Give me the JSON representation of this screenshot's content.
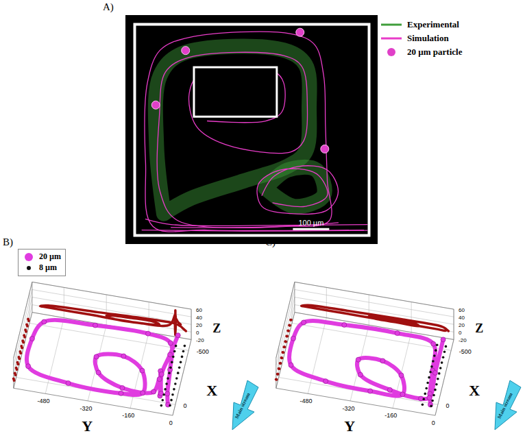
{
  "chart_data": [
    {
      "type": "trajectory",
      "title": "A)",
      "legend": "right",
      "tick_labels": false,
      "xlim": [
        0,
        645
      ],
      "ylim": [
        0,
        581
      ],
      "obstacle": {
        "x": [
          164,
          392
        ],
        "y": [
          326,
          462
        ]
      },
      "scale_bar": {
        "length": 100,
        "label": "100 µm"
      },
      "series": [
        {
          "name": "Experimental",
          "color": "#3f9e3a",
          "line_style": "solid",
          "paths": [
            [
              [
                80,
                60
              ],
              [
                60,
                250
              ],
              [
                70,
                440
              ],
              [
                130,
                500
              ],
              [
                410,
                510
              ],
              [
                470,
                470
              ],
              [
                480,
                350
              ],
              [
                470,
                230
              ],
              [
                420,
                190
              ],
              [
                300,
                150
              ],
              [
                150,
                100
              ],
              [
                80,
                60
              ]
            ],
            [
              [
                360,
                130
              ],
              [
                420,
                180
              ],
              [
                500,
                180
              ],
              [
                520,
                110
              ],
              [
                440,
                80
              ],
              [
                360,
                130
              ]
            ]
          ]
        },
        {
          "name": "Simulation",
          "color": "#e83cc8",
          "line_style": "solid",
          "paths": [
            [
              [
                630,
                15
              ],
              [
                200,
                15
              ],
              [
                50,
                25
              ],
              [
                30,
                200
              ],
              [
                35,
                420
              ],
              [
                70,
                510
              ],
              [
                150,
                545
              ],
              [
                430,
                555
              ],
              [
                495,
                525
              ],
              [
                520,
                440
              ],
              [
                525,
                300
              ],
              [
                530,
                150
              ],
              [
                535,
                40
              ],
              [
                400,
                25
              ],
              [
                100,
                22
              ]
            ],
            [
              [
                560,
                35
              ],
              [
                120,
                40
              ],
              [
                70,
                120
              ],
              [
                68,
                330
              ],
              [
                85,
                450
              ],
              [
                150,
                490
              ],
              [
                410,
                495
              ],
              [
                460,
                465
              ],
              [
                475,
                360
              ],
              [
                465,
                260
              ],
              [
                430,
                230
              ],
              [
                250,
                250
              ],
              [
                170,
                300
              ],
              [
                150,
                390
              ],
              [
                180,
                445
              ],
              [
                385,
                450
              ],
              [
                410,
                420
              ],
              [
                405,
                340
              ],
              [
                360,
                315
              ],
              [
                200,
                315
              ]
            ],
            [
              [
                350,
                110
              ],
              [
                380,
                160
              ],
              [
                450,
                190
              ],
              [
                530,
                180
              ],
              [
                560,
                120
              ],
              [
                530,
                70
              ],
              [
                430,
                60
              ],
              [
                350,
                80
              ],
              [
                340,
                140
              ],
              [
                400,
                180
              ],
              [
                500,
                170
              ],
              [
                530,
                110
              ],
              [
                470,
                80
              ],
              [
                380,
                90
              ]
            ],
            [
              [
                20,
                15
              ],
              [
                300,
                12
              ],
              [
                640,
                14
              ]
            ],
            [
              [
                30,
                45
              ],
              [
                100,
                30
              ],
              [
                400,
                28
              ],
              [
                640,
                30
              ]
            ]
          ]
        },
        {
          "name": "20 µm particle",
          "color": "#e040c8",
          "marker": "sphere",
          "x": [
            140,
            455,
            58,
            523
          ],
          "y": [
            509,
            559,
            359,
            238
          ]
        }
      ]
    },
    {
      "type": "scatter3d",
      "title": "B)",
      "legend": "top-left",
      "grid": true,
      "xlabel": "X",
      "ylabel": "Y",
      "zlabel": "Z",
      "xlim": [
        -600,
        100
      ],
      "ylim": [
        -600,
        0
      ],
      "zlim": [
        -20,
        60
      ],
      "xticks": [
        -500,
        0
      ],
      "yticks": [
        -480,
        -320,
        -160,
        0
      ],
      "zticks": [
        -20,
        0,
        20,
        40,
        60
      ],
      "annotations": [
        "Main stream"
      ],
      "series": [
        {
          "name": "20 µm",
          "color": "#e03ce0",
          "type": "line",
          "marker": "sphere",
          "x": [
            80,
            0,
            -200,
            -420,
            -470,
            -480,
            -450,
            -300,
            -50,
            40,
            50,
            30,
            -150,
            -250,
            -220,
            -100,
            0,
            20,
            0,
            -20,
            -40,
            -60,
            -80,
            -300,
            -500
          ],
          "y": [
            -20,
            -30,
            -40,
            -60,
            -150,
            -350,
            -540,
            -570,
            -560,
            -400,
            -200,
            -120,
            -140,
            -220,
            -320,
            -300,
            -200,
            -80,
            -60,
            -60,
            -60,
            -60,
            -60,
            -50,
            -40
          ],
          "z": [
            0,
            5,
            10,
            15,
            15,
            10,
            5,
            0,
            0,
            0,
            0,
            5,
            10,
            10,
            5,
            0,
            0,
            10,
            40,
            -10,
            50,
            -15,
            30,
            20,
            15
          ]
        },
        {
          "name": "8 µm",
          "color": "#111111",
          "type": "scatter",
          "marker": "dot",
          "x": [
            100,
            50,
            0,
            -50,
            -100,
            -150,
            -200,
            -250,
            -300,
            -350,
            -400,
            -450,
            80,
            30,
            -20,
            -70,
            -120,
            -170,
            -220,
            -270,
            -320,
            -370,
            -420,
            -470
          ],
          "y": [
            -10,
            -10,
            -10,
            -10,
            -10,
            -10,
            -10,
            -10,
            -10,
            -10,
            -10,
            -10,
            -45,
            -45,
            -45,
            -45,
            -45,
            -45,
            -45,
            -45,
            -45,
            -45,
            -45,
            -45
          ],
          "z": [
            5,
            5,
            5,
            5,
            5,
            5,
            5,
            5,
            5,
            5,
            5,
            5,
            -5,
            -5,
            -5,
            -5,
            -5,
            -5,
            -5,
            -5,
            -5,
            -5,
            -5,
            -5
          ]
        }
      ]
    },
    {
      "type": "scatter3d",
      "title": "C)",
      "grid": true,
      "xlabel": "X",
      "ylabel": "Y",
      "zlabel": "Z",
      "xlim": [
        -600,
        100
      ],
      "ylim": [
        -600,
        0
      ],
      "zlim": [
        -20,
        60
      ],
      "xticks": [
        -500,
        0
      ],
      "yticks": [
        -480,
        -320,
        -160,
        0
      ],
      "zticks": [
        -20,
        0,
        20,
        40,
        60
      ],
      "annotations": [
        "Main stream"
      ],
      "series": [
        {
          "color": "#e03ce0",
          "type": "line",
          "marker": "sphere",
          "x": [
            80,
            0,
            -200,
            -430,
            -470,
            -470,
            -440,
            -300,
            -60,
            30,
            50,
            30,
            -120,
            -220,
            -200,
            -80,
            10,
            40,
            20,
            -200,
            -500
          ],
          "y": [
            -20,
            -30,
            -40,
            -60,
            -200,
            -400,
            -550,
            -575,
            -560,
            -420,
            -250,
            -130,
            -150,
            -230,
            -320,
            -300,
            -180,
            -60,
            -30,
            -30,
            -30
          ],
          "z": [
            0,
            5,
            8,
            10,
            10,
            8,
            5,
            0,
            0,
            0,
            0,
            0,
            5,
            5,
            3,
            0,
            0,
            0,
            0,
            3,
            5
          ]
        },
        {
          "color": "#111111",
          "type": "scatter",
          "marker": "dot",
          "x": [
            100,
            50,
            0,
            -50,
            -100,
            -150,
            -200,
            -250,
            -300,
            -350,
            -400,
            -450,
            80,
            30,
            -20,
            -70,
            -120,
            -170,
            -220,
            -270,
            -320,
            -370,
            -420,
            -470
          ],
          "y": [
            -15,
            -15,
            -15,
            -15,
            -15,
            -15,
            -15,
            -15,
            -15,
            -15,
            -15,
            -15,
            -50,
            -50,
            -50,
            -50,
            -50,
            -50,
            -50,
            -50,
            -50,
            -50,
            -50,
            -50
          ],
          "z": [
            3,
            3,
            3,
            3,
            3,
            3,
            3,
            3,
            3,
            3,
            3,
            3,
            -3,
            -3,
            -3,
            -3,
            -3,
            -3,
            -3,
            -3,
            -3,
            -3,
            -3,
            -3
          ]
        }
      ]
    }
  ]
}
